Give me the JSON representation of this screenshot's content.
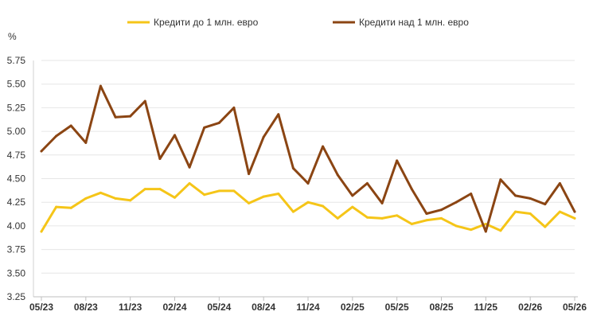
{
  "chart_data": {
    "type": "line",
    "unit_label": "%",
    "ylim": [
      3.25,
      5.75
    ],
    "y_ticks": [
      "3.25",
      "3.50",
      "3.75",
      "4.00",
      "4.25",
      "4.50",
      "4.75",
      "5.00",
      "5.25",
      "5.50",
      "5.75"
    ],
    "x": [
      "05/23",
      "06/23",
      "07/23",
      "08/23",
      "09/23",
      "10/23",
      "11/23",
      "12/23",
      "01/24",
      "02/24",
      "03/24",
      "04/24",
      "05/24",
      "06/24",
      "07/24",
      "08/24",
      "09/24",
      "10/24",
      "11/24",
      "12/24",
      "01/25",
      "02/25",
      "03/25",
      "04/25",
      "05/25",
      "06/25",
      "07/25",
      "08/25",
      "09/25",
      "10/25",
      "11/25",
      "12/25",
      "01/26",
      "02/26",
      "03/26",
      "04/26",
      "05/26"
    ],
    "x_tick_labels": [
      "05/23",
      "08/23",
      "11/23",
      "02/24",
      "05/24",
      "08/24",
      "11/24",
      "02/25",
      "05/25",
      "08/25",
      "11/25",
      "02/26",
      "05/26"
    ],
    "grid": true,
    "legend_position": "top",
    "series": [
      {
        "name": "Кредити до 1 млн. евро",
        "color": "#F5C518",
        "values": [
          3.94,
          4.2,
          4.19,
          4.29,
          4.35,
          4.29,
          4.27,
          4.39,
          4.39,
          4.3,
          4.45,
          4.33,
          4.37,
          4.37,
          4.24,
          4.31,
          4.34,
          4.15,
          4.25,
          4.21,
          4.08,
          4.2,
          4.09,
          4.08,
          4.11,
          4.02,
          4.06,
          4.08,
          4.0,
          3.96,
          4.02,
          3.95,
          4.15,
          4.13,
          3.99,
          4.15,
          4.08
        ]
      },
      {
        "name": "Кредити над 1 млн. евро",
        "color": "#8B4513",
        "values": [
          4.79,
          4.95,
          5.06,
          4.88,
          5.48,
          5.15,
          5.16,
          5.32,
          4.71,
          4.96,
          4.62,
          5.04,
          5.09,
          5.25,
          4.55,
          4.94,
          5.18,
          4.61,
          4.45,
          4.84,
          4.54,
          4.32,
          4.45,
          4.24,
          4.69,
          4.39,
          4.13,
          4.17,
          4.25,
          4.34,
          3.94,
          4.49,
          4.32,
          4.29,
          4.23,
          4.45,
          4.15
        ]
      }
    ]
  }
}
